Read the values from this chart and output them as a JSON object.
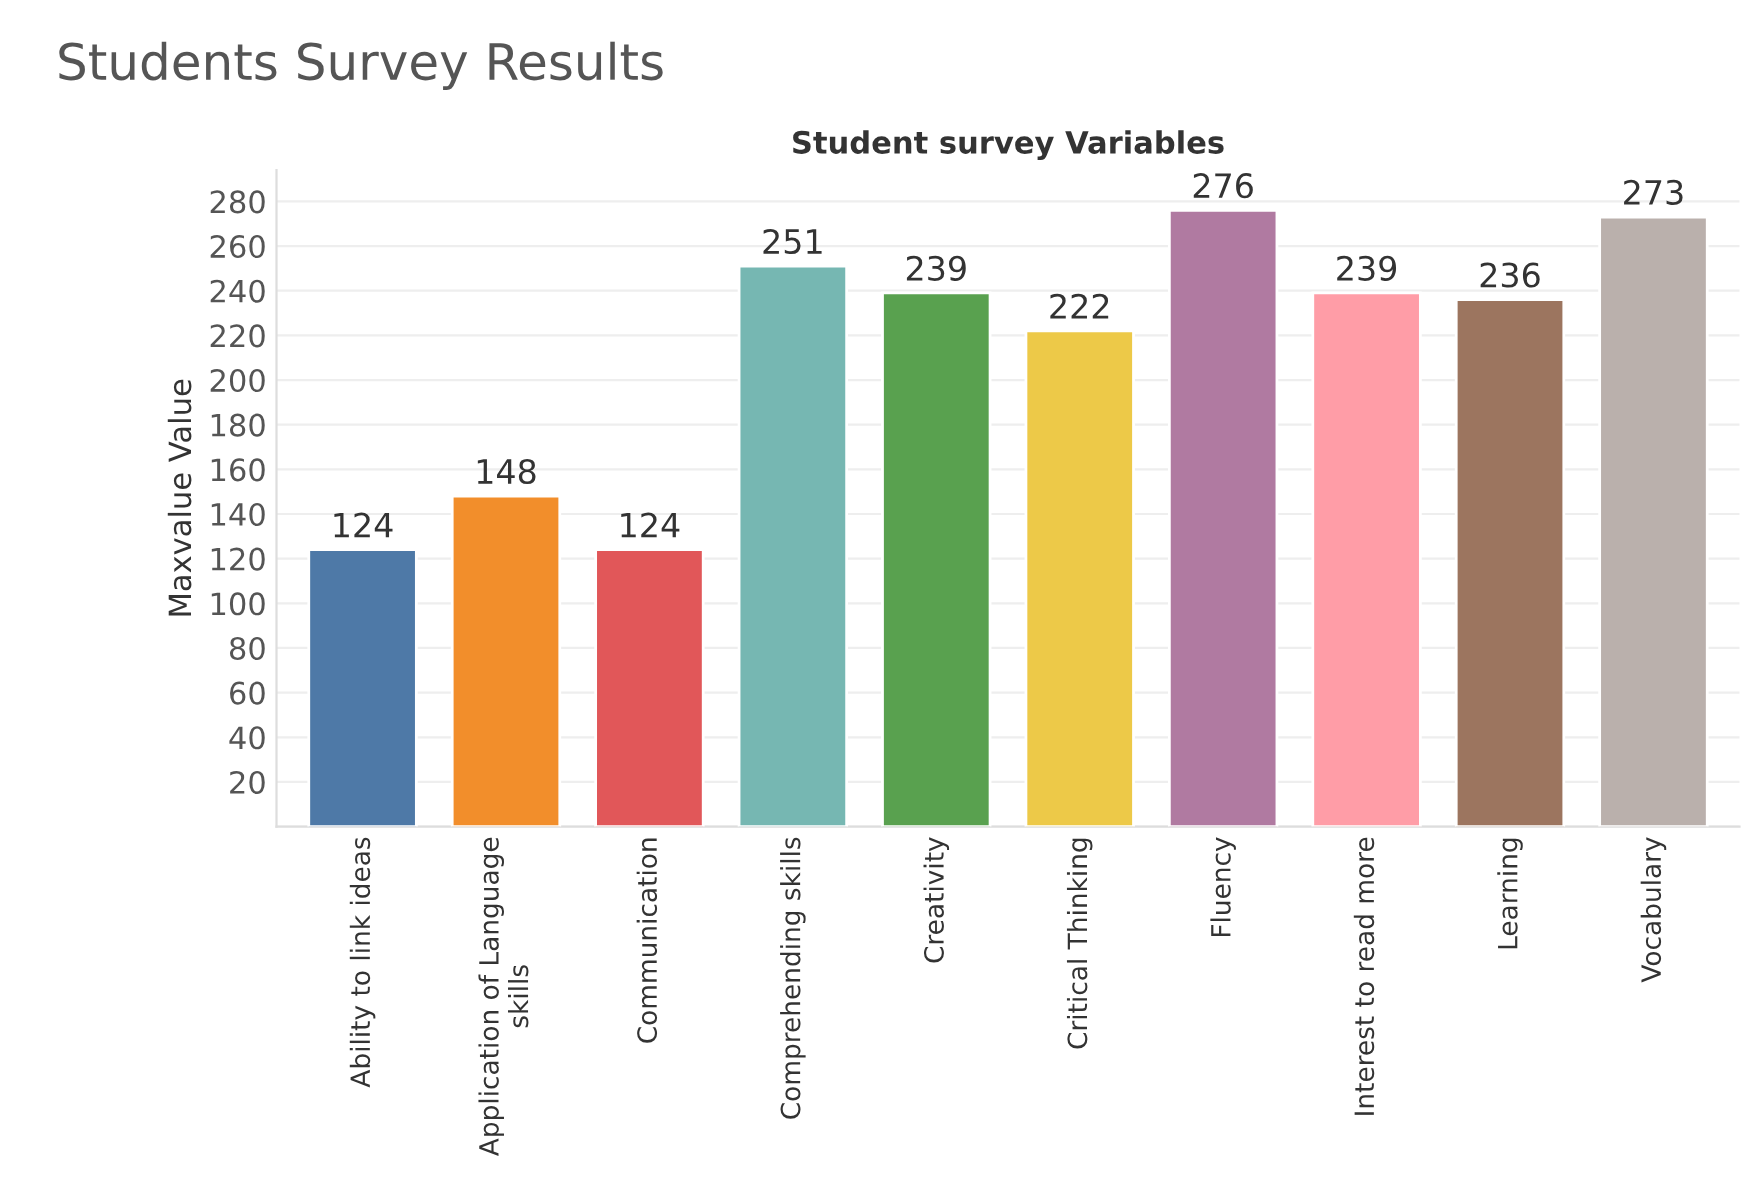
{
  "chart_data": {
    "type": "bar",
    "title": "Students Survey Results",
    "xlabel": "Student survey Variables",
    "ylabel": "Maxvalue Value",
    "categories": [
      "Ability to link ideas",
      "Application of Language\nskills",
      "Communication",
      "Comprehending skills",
      "Creativity",
      "Critical Thinking",
      "Fluency",
      "Interest to read more",
      "Learning",
      "Vocabulary"
    ],
    "values": [
      124,
      148,
      124,
      251,
      239,
      222,
      276,
      239,
      236,
      273
    ],
    "colors": [
      "#4e79a7",
      "#f28e2b",
      "#e15759",
      "#76b7b2",
      "#59a14f",
      "#edc948",
      "#b07aa1",
      "#ff9da7",
      "#9c755f",
      "#bab0ac"
    ],
    "ylim": [
      0,
      294
    ],
    "yticks": [
      {
        "value": 0,
        "label": null
      },
      20,
      40,
      60,
      80,
      100,
      120,
      140,
      160,
      180,
      200,
      220,
      240,
      260,
      280
    ],
    "grid": "y",
    "data_labels": true
  }
}
